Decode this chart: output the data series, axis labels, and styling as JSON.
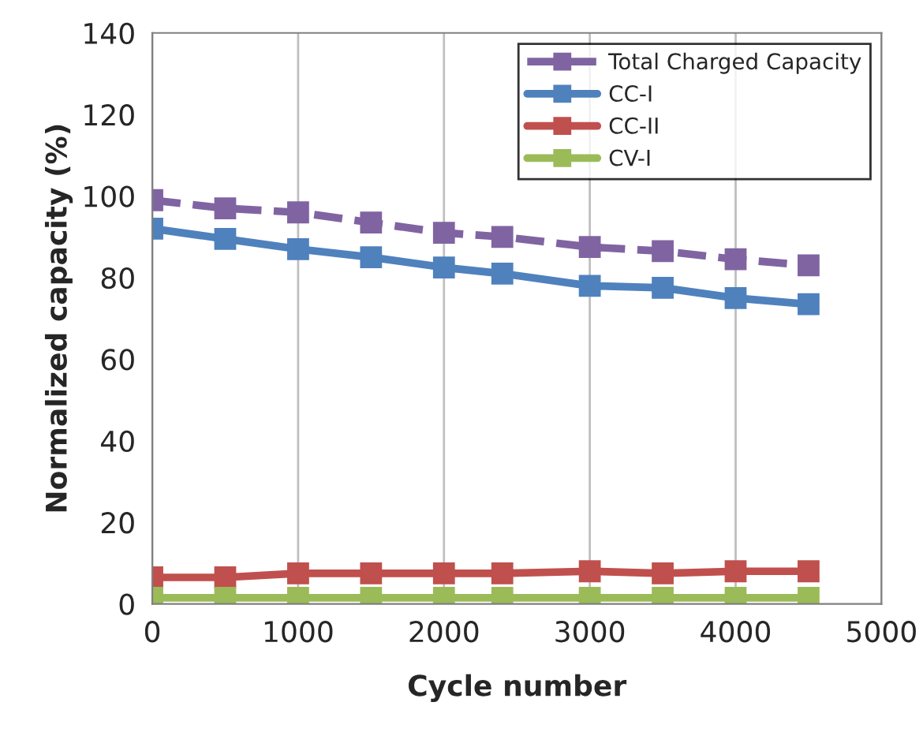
{
  "chart_data": {
    "type": "line",
    "xlabel": "Cycle number",
    "ylabel": "Normalized capacity (%)",
    "x": [
      0,
      500,
      1000,
      1500,
      2000,
      2400,
      3000,
      3500,
      4000,
      4500
    ],
    "series": [
      {
        "name": "Total Charged Capacity",
        "color": "#8064a2",
        "line_style": "dashed",
        "values": [
          99,
          97,
          96,
          93.5,
          91,
          90,
          87.5,
          86.5,
          84.5,
          83
        ]
      },
      {
        "name": "CC-I",
        "color": "#4f81bd",
        "values": [
          92,
          89.5,
          87,
          85,
          82.5,
          81,
          78,
          77.5,
          75,
          73.5
        ]
      },
      {
        "name": "CC-II",
        "color": "#c0504d",
        "values": [
          6.5,
          6.5,
          7.5,
          7.5,
          7.5,
          7.5,
          8,
          7.5,
          8,
          8
        ]
      },
      {
        "name": "CV-I",
        "color": "#9bbb59",
        "values": [
          1.5,
          1.5,
          1.5,
          1.5,
          1.5,
          1.5,
          1.5,
          1.5,
          1.5,
          1.5
        ]
      }
    ],
    "xlim": [
      0,
      5000
    ],
    "xticks": [
      0,
      1000,
      2000,
      3000,
      4000,
      5000
    ],
    "ylim": [
      0,
      140
    ],
    "yticks": [
      0,
      20,
      40,
      60,
      80,
      100,
      120,
      140
    ],
    "grid": "x",
    "legend": "top right",
    "marker": "square",
    "line_style": "solid"
  }
}
